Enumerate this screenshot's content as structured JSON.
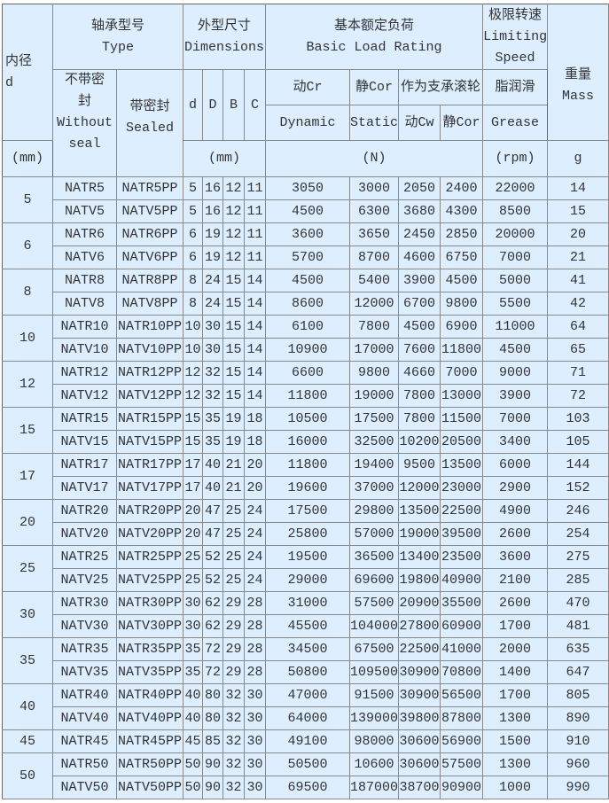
{
  "header": {
    "bore": "内径\nd",
    "type": "轴承型号\nType",
    "dims": "外型尺寸\nDimensions",
    "load": "基本额定负荷\nBasic Load Rating",
    "speed": "极限转速\nLimiting\nSpeed",
    "mass": "重量\nMass",
    "without_seal": "不带密\n封\nWithout\nseal",
    "sealed": "带密封\nSealed",
    "d": "d",
    "D": "D",
    "B": "B",
    "C": "C",
    "cr": "动Cr",
    "cor": "静Cor",
    "support": "作为支承滚轮",
    "grease_cn": "脂润滑",
    "dynamic": "Dynamic",
    "static": "Static",
    "cw": "动Cw",
    "cor2": "静Cor",
    "grease": "Grease",
    "unit_mm": "(mm)",
    "unit_dims": "(mm)",
    "unit_n": "(N)",
    "unit_rpm": "(rpm)",
    "unit_g": "g"
  },
  "groups": [
    {
      "d": "5",
      "rows": [
        [
          "NATR5",
          "NATR5PP",
          "5",
          "16",
          "12",
          "11",
          "3050",
          "3000",
          "2050",
          "2400",
          "22000",
          "14"
        ],
        [
          "NATV5",
          "NATV5PP",
          "5",
          "16",
          "12",
          "11",
          "4500",
          "6300",
          "3680",
          "4300",
          "8500",
          "15"
        ]
      ]
    },
    {
      "d": "6",
      "rows": [
        [
          "NATR6",
          "NATR6PP",
          "6",
          "19",
          "12",
          "11",
          "3600",
          "3650",
          "2450",
          "2850",
          "20000",
          "20"
        ],
        [
          "NATV6",
          "NATV6PP",
          "6",
          "19",
          "12",
          "11",
          "5700",
          "8700",
          "4600",
          "6750",
          "7000",
          "21"
        ]
      ]
    },
    {
      "d": "8",
      "rows": [
        [
          "NATR8",
          "NATR8PP",
          "8",
          "24",
          "15",
          "14",
          "4500",
          "5400",
          "3900",
          "4500",
          "5000",
          "41"
        ],
        [
          "NATV8",
          "NATV8PP",
          "8",
          "24",
          "15",
          "14",
          "8600",
          "12000",
          "6700",
          "9800",
          "5500",
          "42"
        ]
      ]
    },
    {
      "d": "10",
      "rows": [
        [
          "NATR10",
          "NATR10PP",
          "10",
          "30",
          "15",
          "14",
          "6100",
          "7800",
          "4500",
          "6900",
          "11000",
          "64"
        ],
        [
          "NATV10",
          "NATV10PP",
          "10",
          "30",
          "15",
          "14",
          "10900",
          "17000",
          "7600",
          "11800",
          "4500",
          "65"
        ]
      ]
    },
    {
      "d": "12",
      "rows": [
        [
          "NATR12",
          "NATR12PP",
          "12",
          "32",
          "15",
          "14",
          "6600",
          "9800",
          "4660",
          "7000",
          "9000",
          "71"
        ],
        [
          "NATV12",
          "NATV12PP",
          "12",
          "32",
          "15",
          "14",
          "11800",
          "19000",
          "7800",
          "13000",
          "3900",
          "72"
        ]
      ]
    },
    {
      "d": "15",
      "rows": [
        [
          "NATR15",
          "NATR15PP",
          "15",
          "35",
          "19",
          "18",
          "10500",
          "17500",
          "7800",
          "11500",
          "7000",
          "103"
        ],
        [
          "NATV15",
          "NATV15PP",
          "15",
          "35",
          "19",
          "18",
          "16000",
          "32500",
          "10200",
          "20500",
          "3400",
          "105"
        ]
      ]
    },
    {
      "d": "17",
      "rows": [
        [
          "NATR17",
          "NATR17PP",
          "17",
          "40",
          "21",
          "20",
          "11800",
          "19400",
          "9500",
          "13500",
          "6000",
          "144"
        ],
        [
          "NATV17",
          "NATV17PP",
          "17",
          "40",
          "21",
          "20",
          "19600",
          "37000",
          "12000",
          "23000",
          "2900",
          "152"
        ]
      ]
    },
    {
      "d": "20",
      "rows": [
        [
          "NATR20",
          "NATR20PP",
          "20",
          "47",
          "25",
          "24",
          "17500",
          "29800",
          "13500",
          "22500",
          "4900",
          "246"
        ],
        [
          "NATV20",
          "NATV20PP",
          "20",
          "47",
          "25",
          "24",
          "25800",
          "57000",
          "19000",
          "39500",
          "2600",
          "254"
        ]
      ]
    },
    {
      "d": "25",
      "rows": [
        [
          "NATR25",
          "NATR25PP",
          "25",
          "52",
          "25",
          "24",
          "19500",
          "36500",
          "13400",
          "23500",
          "3600",
          "275"
        ],
        [
          "NATV25",
          "NATV25PP",
          "25",
          "52",
          "25",
          "24",
          "29000",
          "69600",
          "19800",
          "40900",
          "2100",
          "285"
        ]
      ]
    },
    {
      "d": "30",
      "rows": [
        [
          "NATR30",
          "NATR30PP",
          "30",
          "62",
          "29",
          "28",
          "31000",
          "57500",
          "20900",
          "35500",
          "2600",
          "470"
        ],
        [
          "NATV30",
          "NATV30PP",
          "30",
          "62",
          "29",
          "28",
          "45500",
          "104000",
          "27800",
          "60900",
          "1700",
          "481"
        ]
      ]
    },
    {
      "d": "35",
      "rows": [
        [
          "NATR35",
          "NATR35PP",
          "35",
          "72",
          "29",
          "28",
          "34500",
          "67500",
          "22500",
          "41000",
          "2000",
          "635"
        ],
        [
          "NATV35",
          "NATV35PP",
          "35",
          "72",
          "29",
          "28",
          "50800",
          "109500",
          "30900",
          "70800",
          "1400",
          "647"
        ]
      ]
    },
    {
      "d": "40",
      "rows": [
        [
          "NATR40",
          "NATR40PP",
          "40",
          "80",
          "32",
          "30",
          "47000",
          "91500",
          "30900",
          "56500",
          "1700",
          "805"
        ],
        [
          "NATV40",
          "NATV40PP",
          "40",
          "80",
          "32",
          "30",
          "64000",
          "139000",
          "39800",
          "87800",
          "1300",
          "890"
        ]
      ]
    },
    {
      "d": "45",
      "rows": [
        [
          "NATR45",
          "NATR45PP",
          "45",
          "85",
          "32",
          "30",
          "49100",
          "98000",
          "30600",
          "56900",
          "1500",
          "910"
        ]
      ]
    },
    {
      "d": "50",
      "rows": [
        [
          "NATR50",
          "NATR50PP",
          "50",
          "90",
          "32",
          "30",
          "50500",
          "10600",
          "30600",
          "57500",
          "1300",
          "960"
        ],
        [
          "NATV50",
          "NATV50PP",
          "50",
          "90",
          "32",
          "30",
          "69500",
          "187000",
          "38700",
          "90900",
          "1000",
          "990"
        ]
      ]
    }
  ]
}
